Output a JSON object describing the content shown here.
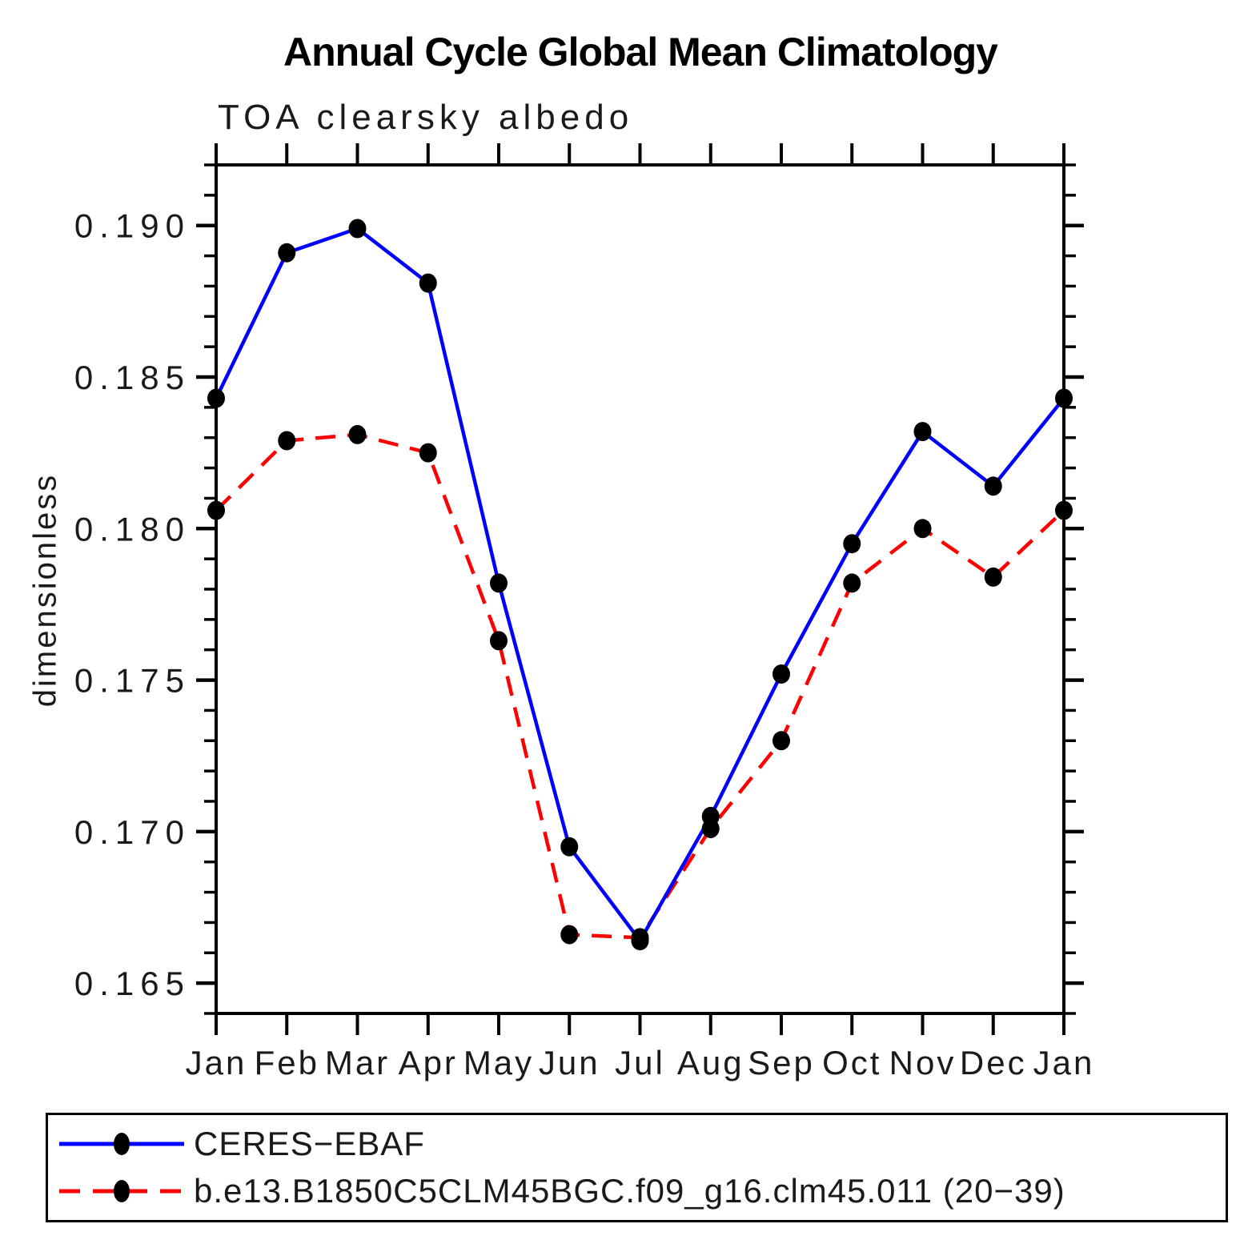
{
  "title": "Annual Cycle Global Mean Climatology",
  "chart_data": {
    "type": "line",
    "title": "Annual Cycle Global Mean Climatology",
    "subtitle": "TOA clearsky albedo",
    "ylabel": "dimensionless",
    "xlabel": "",
    "x_ticklabels": [
      "Jan",
      "Feb",
      "Mar",
      "Apr",
      "May",
      "Jun",
      "Jul",
      "Aug",
      "Sep",
      "Oct",
      "Nov",
      "Dec",
      "Jan"
    ],
    "ylim": [
      0.164,
      0.192
    ],
    "y_major_ticks": [
      0.165,
      0.17,
      0.175,
      0.18,
      0.185,
      0.19
    ],
    "y_major_ticklabels": [
      "0.165",
      "0.170",
      "0.175",
      "0.180",
      "0.185",
      "0.190"
    ],
    "y_minor_step": 0.001,
    "grid": false,
    "legend_position": "bottom",
    "frame_color": "#000000",
    "marker_color": "#000000",
    "series": [
      {
        "name": "CERES−EBAF",
        "color": "#0000FF",
        "line_style": "solid",
        "marker": "filled-circle",
        "values": [
          0.1843,
          0.1891,
          0.1899,
          0.1881,
          0.1782,
          0.1695,
          0.1664,
          0.1705,
          0.1752,
          0.1795,
          0.1832,
          0.1814,
          0.1843
        ]
      },
      {
        "name": "b.e13.B1850C5CLM45BGC.f09_g16.clm45.011 (20−39)",
        "color": "#FF0000",
        "line_style": "dashed",
        "marker": "filled-circle",
        "values": [
          0.1806,
          0.1829,
          0.1831,
          0.1825,
          0.1763,
          0.1666,
          0.1665,
          0.1701,
          0.173,
          0.1782,
          0.18,
          0.1784,
          0.1806
        ]
      }
    ]
  }
}
